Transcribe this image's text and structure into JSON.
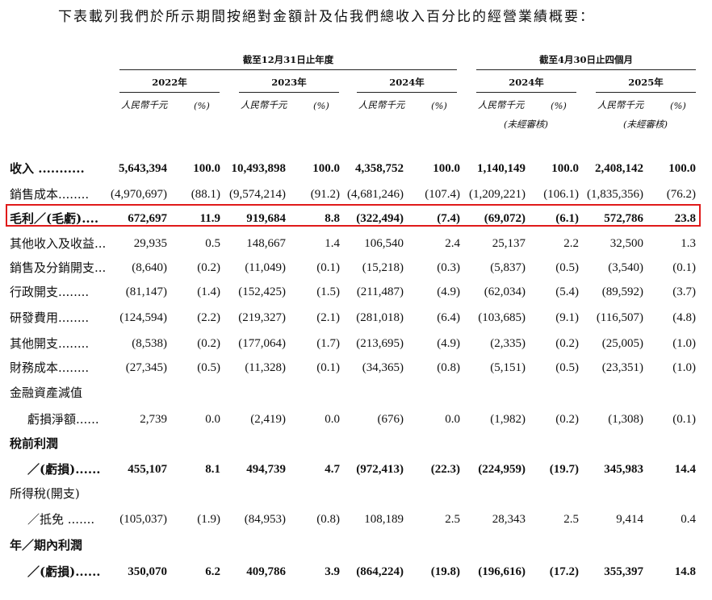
{
  "intro": "下表載列我們於所示期間按絕對金額計及佔我們總收入百分比的經營業績概要：",
  "groups": {
    "year_end": "截至12月31日止年度",
    "four_months": "截至4月30日止四個月"
  },
  "years": [
    "2022年",
    "2023年",
    "2024年",
    "2024年",
    "2025年"
  ],
  "unit_rmb": "人民幣千元",
  "unit_pct": "(%)",
  "unaudited": "(未經審核)",
  "rows": [
    {
      "label": "收入 ...........",
      "bold": true,
      "values": [
        "5,643,394",
        "100.0",
        "10,493,898",
        "100.0",
        "4,358,752",
        "100.0",
        "1,140,149",
        "100.0",
        "2,408,142",
        "100.0"
      ]
    },
    {
      "label": "銷售成本........",
      "bold": false,
      "values": [
        "(4,970,697)",
        "(88.1)",
        "(9,574,214)",
        "(91.2)",
        "(4,681,246)",
        "(107.4)",
        "(1,209,221)",
        "(106.1)",
        "(1,835,356)",
        "(76.2)"
      ]
    },
    {
      "label": "毛利／(毛虧)....",
      "bold": true,
      "values": [
        "672,697",
        "11.9",
        "919,684",
        "8.8",
        "(322,494)",
        "(7.4)",
        "(69,072)",
        "(6.1)",
        "572,786",
        "23.8"
      ]
    },
    {
      "label": "其他收入及收益...",
      "bold": false,
      "values": [
        "29,935",
        "0.5",
        "148,667",
        "1.4",
        "106,540",
        "2.4",
        "25,137",
        "2.2",
        "32,500",
        "1.3"
      ]
    },
    {
      "label": "銷售及分銷開支...",
      "bold": false,
      "values": [
        "(8,640)",
        "(0.2)",
        "(11,049)",
        "(0.1)",
        "(15,218)",
        "(0.3)",
        "(5,837)",
        "(0.5)",
        "(3,540)",
        "(0.1)"
      ]
    },
    {
      "label": "行政開支........",
      "bold": false,
      "values": [
        "(81,147)",
        "(1.4)",
        "(152,425)",
        "(1.5)",
        "(211,487)",
        "(4.9)",
        "(62,034)",
        "(5.4)",
        "(89,592)",
        "(3.7)"
      ]
    },
    {
      "label": "研發費用........",
      "bold": false,
      "values": [
        "(124,594)",
        "(2.2)",
        "(219,327)",
        "(2.1)",
        "(281,018)",
        "(6.4)",
        "(103,685)",
        "(9.1)",
        "(116,507)",
        "(4.8)"
      ]
    },
    {
      "label": "其他開支........",
      "bold": false,
      "values": [
        "(8,538)",
        "(0.2)",
        "(177,064)",
        "(1.7)",
        "(213,695)",
        "(4.9)",
        "(2,335)",
        "(0.2)",
        "(25,005)",
        "(1.0)"
      ]
    },
    {
      "label": "財務成本........",
      "bold": false,
      "values": [
        "(27,345)",
        "(0.5)",
        "(11,328)",
        "(0.1)",
        "(34,365)",
        "(0.8)",
        "(5,151)",
        "(0.5)",
        "(23,351)",
        "(1.0)"
      ]
    },
    {
      "label": "金融資產減值",
      "bold": false,
      "values": [
        "",
        "",
        "",
        "",
        "",
        "",
        "",
        "",
        "",
        ""
      ]
    },
    {
      "label": "虧損淨額......",
      "bold": false,
      "indent": true,
      "values": [
        "2,739",
        "0.0",
        "(2,419)",
        "0.0",
        "(676)",
        "0.0",
        "(1,982)",
        "(0.2)",
        "(1,308)",
        "(0.1)"
      ]
    },
    {
      "label": "稅前利潤",
      "bold": true,
      "values": [
        "",
        "",
        "",
        "",
        "",
        "",
        "",
        "",
        "",
        ""
      ]
    },
    {
      "label": "／(虧損)......",
      "bold": true,
      "indent": true,
      "values": [
        "455,107",
        "8.1",
        "494,739",
        "4.7",
        "(972,413)",
        "(22.3)",
        "(224,959)",
        "(19.7)",
        "345,983",
        "14.4"
      ]
    },
    {
      "label": "所得稅(開支)",
      "bold": false,
      "values": [
        "",
        "",
        "",
        "",
        "",
        "",
        "",
        "",
        "",
        ""
      ]
    },
    {
      "label": "／抵免 .......",
      "bold": false,
      "indent": true,
      "values": [
        "(105,037)",
        "(1.9)",
        "(84,953)",
        "(0.8)",
        "108,189",
        "2.5",
        "28,343",
        "2.5",
        "9,414",
        "0.4"
      ]
    },
    {
      "label": "年／期內利潤",
      "bold": true,
      "values": [
        "",
        "",
        "",
        "",
        "",
        "",
        "",
        "",
        "",
        ""
      ]
    },
    {
      "label": "／(虧損)......",
      "bold": true,
      "indent": true,
      "values": [
        "350,070",
        "6.2",
        "409,786",
        "3.9",
        "(864,224)",
        "(19.8)",
        "(196,616)",
        "(17.2)",
        "355,397",
        "14.8"
      ]
    }
  ]
}
